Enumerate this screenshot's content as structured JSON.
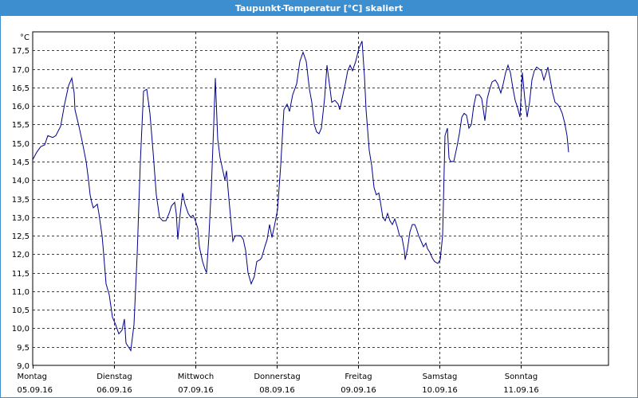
{
  "window": {
    "title": "Taupunkt-Temperatur [°C] skaliert"
  },
  "chart_data": {
    "type": "line",
    "title": "Taupunkt-Temperatur [°C] skaliert",
    "ylabel": "°C",
    "ylim": [
      9.0,
      18.0
    ],
    "xlim": [
      0,
      7
    ],
    "grid": true,
    "y_ticks": [
      "9,0",
      "9,5",
      "10,0",
      "10,5",
      "11,0",
      "11,5",
      "12,0",
      "12,5",
      "13,0",
      "13,5",
      "14,0",
      "14,5",
      "15,0",
      "15,5",
      "16,0",
      "16,5",
      "17,0",
      "17,5"
    ],
    "x_ticks": [
      {
        "day": "Montag",
        "date": "05.09.16"
      },
      {
        "day": "Dienstag",
        "date": "06.09.16"
      },
      {
        "day": "Mittwoch",
        "date": "07.09.16"
      },
      {
        "day": "Donnerstag",
        "date": "08.09.16"
      },
      {
        "day": "Freitag",
        "date": "09.09.16"
      },
      {
        "day": "Samstag",
        "date": "10.09.16"
      },
      {
        "day": "Sonntag",
        "date": "11.09.16"
      }
    ],
    "color": "#00008b",
    "series": [
      {
        "points": [
          [
            0.0,
            14.55
          ],
          [
            0.049,
            14.75
          ],
          [
            0.098,
            14.9
          ],
          [
            0.147,
            14.95
          ],
          [
            0.186,
            15.2
          ],
          [
            0.245,
            15.15
          ],
          [
            0.284,
            15.2
          ],
          [
            0.343,
            15.45
          ],
          [
            0.392,
            16.05
          ],
          [
            0.441,
            16.55
          ],
          [
            0.48,
            16.75
          ],
          [
            0.51,
            16.35
          ],
          [
            0.52,
            15.9
          ],
          [
            0.569,
            15.45
          ],
          [
            0.608,
            15.05
          ],
          [
            0.657,
            14.5
          ],
          [
            0.686,
            14.0
          ],
          [
            0.706,
            13.6
          ],
          [
            0.725,
            13.4
          ],
          [
            0.745,
            13.25
          ],
          [
            0.794,
            13.35
          ],
          [
            0.814,
            13.1
          ],
          [
            0.853,
            12.5
          ],
          [
            0.873,
            12.0
          ],
          [
            0.902,
            11.2
          ],
          [
            0.941,
            10.9
          ],
          [
            0.98,
            10.3
          ],
          [
            1.02,
            10.1
          ],
          [
            1.059,
            9.85
          ],
          [
            1.098,
            9.95
          ],
          [
            1.127,
            10.25
          ],
          [
            1.147,
            9.6
          ],
          [
            1.206,
            9.4
          ],
          [
            1.245,
            10.1
          ],
          [
            1.284,
            12.0
          ],
          [
            1.324,
            14.5
          ],
          [
            1.363,
            16.4
          ],
          [
            1.402,
            16.45
          ],
          [
            1.441,
            15.8
          ],
          [
            1.48,
            14.75
          ],
          [
            1.52,
            13.6
          ],
          [
            1.559,
            13.0
          ],
          [
            1.598,
            12.9
          ],
          [
            1.637,
            12.9
          ],
          [
            1.676,
            13.1
          ],
          [
            1.706,
            13.3
          ],
          [
            1.745,
            13.4
          ],
          [
            1.765,
            13.1
          ],
          [
            1.784,
            12.4
          ],
          [
            1.814,
            13.1
          ],
          [
            1.843,
            13.65
          ],
          [
            1.873,
            13.35
          ],
          [
            1.912,
            13.1
          ],
          [
            1.941,
            13.0
          ],
          [
            1.971,
            13.05
          ],
          [
            2.0,
            12.9
          ],
          [
            2.029,
            12.7
          ],
          [
            2.049,
            12.2
          ],
          [
            2.088,
            11.8
          ],
          [
            2.118,
            11.6
          ],
          [
            2.137,
            11.5
          ],
          [
            2.167,
            12.5
          ],
          [
            2.196,
            13.8
          ],
          [
            2.225,
            15.5
          ],
          [
            2.245,
            16.75
          ],
          [
            2.275,
            15.1
          ],
          [
            2.304,
            14.6
          ],
          [
            2.333,
            14.3
          ],
          [
            2.363,
            14.0
          ],
          [
            2.382,
            14.25
          ],
          [
            2.412,
            13.5
          ],
          [
            2.441,
            12.8
          ],
          [
            2.461,
            12.35
          ],
          [
            2.49,
            12.5
          ],
          [
            2.52,
            12.5
          ],
          [
            2.559,
            12.5
          ],
          [
            2.588,
            12.4
          ],
          [
            2.618,
            12.1
          ],
          [
            2.647,
            11.5
          ],
          [
            2.686,
            11.2
          ],
          [
            2.725,
            11.4
          ],
          [
            2.755,
            11.8
          ],
          [
            2.794,
            11.85
          ],
          [
            2.814,
            11.9
          ],
          [
            2.853,
            12.2
          ],
          [
            2.882,
            12.4
          ],
          [
            2.912,
            12.8
          ],
          [
            2.941,
            12.45
          ],
          [
            2.971,
            12.75
          ],
          [
            3.01,
            13.2
          ],
          [
            3.049,
            14.4
          ],
          [
            3.088,
            15.9
          ],
          [
            3.127,
            16.05
          ],
          [
            3.157,
            15.85
          ],
          [
            3.196,
            16.3
          ],
          [
            3.245,
            16.6
          ],
          [
            3.284,
            17.2
          ],
          [
            3.324,
            17.45
          ],
          [
            3.363,
            17.2
          ],
          [
            3.402,
            16.45
          ],
          [
            3.431,
            16.1
          ],
          [
            3.461,
            15.5
          ],
          [
            3.49,
            15.3
          ],
          [
            3.52,
            15.25
          ],
          [
            3.549,
            15.4
          ],
          [
            3.588,
            16.2
          ],
          [
            3.618,
            17.1
          ],
          [
            3.647,
            16.6
          ],
          [
            3.676,
            16.1
          ],
          [
            3.716,
            16.15
          ],
          [
            3.755,
            16.05
          ],
          [
            3.775,
            15.9
          ],
          [
            3.814,
            16.3
          ],
          [
            3.843,
            16.6
          ],
          [
            3.873,
            16.95
          ],
          [
            3.902,
            17.1
          ],
          [
            3.931,
            16.95
          ],
          [
            3.971,
            17.2
          ],
          [
            4.01,
            17.55
          ],
          [
            4.049,
            17.75
          ],
          [
            4.078,
            16.8
          ],
          [
            4.098,
            15.9
          ],
          [
            4.137,
            14.8
          ],
          [
            4.167,
            14.4
          ],
          [
            4.196,
            13.8
          ],
          [
            4.225,
            13.6
          ],
          [
            4.255,
            13.65
          ],
          [
            4.275,
            13.4
          ],
          [
            4.304,
            13.0
          ],
          [
            4.333,
            12.9
          ],
          [
            4.363,
            13.1
          ],
          [
            4.392,
            12.9
          ],
          [
            4.422,
            12.8
          ],
          [
            4.451,
            12.95
          ],
          [
            4.48,
            12.75
          ],
          [
            4.51,
            12.5
          ],
          [
            4.539,
            12.45
          ],
          [
            4.569,
            12.1
          ],
          [
            4.578,
            11.85
          ],
          [
            4.608,
            12.15
          ],
          [
            4.637,
            12.6
          ],
          [
            4.667,
            12.8
          ],
          [
            4.696,
            12.8
          ],
          [
            4.716,
            12.7
          ],
          [
            4.745,
            12.5
          ],
          [
            4.775,
            12.35
          ],
          [
            4.804,
            12.2
          ],
          [
            4.833,
            12.3
          ],
          [
            4.853,
            12.15
          ],
          [
            4.882,
            12.05
          ],
          [
            4.912,
            11.9
          ],
          [
            4.941,
            11.8
          ],
          [
            4.98,
            11.75
          ],
          [
            5.01,
            11.85
          ],
          [
            5.039,
            12.5
          ],
          [
            5.069,
            15.2
          ],
          [
            5.098,
            15.4
          ],
          [
            5.118,
            14.6
          ],
          [
            5.137,
            14.5
          ],
          [
            5.176,
            14.5
          ],
          [
            5.216,
            14.9
          ],
          [
            5.245,
            15.25
          ],
          [
            5.275,
            15.7
          ],
          [
            5.304,
            15.8
          ],
          [
            5.333,
            15.75
          ],
          [
            5.363,
            15.4
          ],
          [
            5.392,
            15.5
          ],
          [
            5.422,
            16.0
          ],
          [
            5.451,
            16.3
          ],
          [
            5.49,
            16.3
          ],
          [
            5.52,
            16.2
          ],
          [
            5.559,
            15.6
          ],
          [
            5.588,
            16.2
          ],
          [
            5.618,
            16.45
          ],
          [
            5.647,
            16.65
          ],
          [
            5.686,
            16.7
          ],
          [
            5.716,
            16.6
          ],
          [
            5.755,
            16.35
          ],
          [
            5.784,
            16.6
          ],
          [
            5.814,
            16.9
          ],
          [
            5.843,
            17.1
          ],
          [
            5.873,
            16.9
          ],
          [
            5.902,
            16.5
          ],
          [
            5.931,
            16.15
          ],
          [
            5.961,
            15.95
          ],
          [
            5.99,
            15.7
          ],
          [
            6.02,
            16.9
          ],
          [
            6.049,
            16.2
          ],
          [
            6.078,
            15.7
          ],
          [
            6.108,
            16.1
          ],
          [
            6.137,
            16.7
          ],
          [
            6.167,
            16.95
          ],
          [
            6.196,
            17.05
          ],
          [
            6.225,
            17.0
          ],
          [
            6.255,
            16.95
          ],
          [
            6.284,
            16.7
          ],
          [
            6.314,
            16.9
          ],
          [
            6.333,
            17.05
          ],
          [
            6.363,
            16.7
          ],
          [
            6.392,
            16.35
          ],
          [
            6.422,
            16.1
          ],
          [
            6.451,
            16.05
          ],
          [
            6.48,
            15.95
          ],
          [
            6.51,
            15.8
          ],
          [
            6.539,
            15.55
          ],
          [
            6.569,
            15.2
          ],
          [
            6.588,
            14.75
          ]
        ]
      }
    ]
  }
}
